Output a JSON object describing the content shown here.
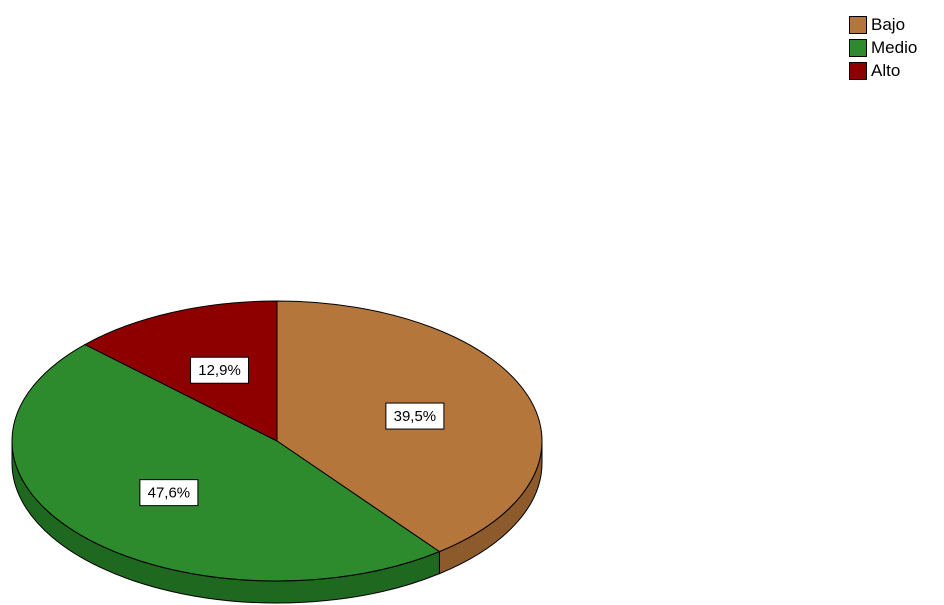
{
  "chart_data": {
    "type": "pie",
    "title": "",
    "categories": [
      "Bajo",
      "Medio",
      "Alto"
    ],
    "values": [
      39.5,
      47.6,
      12.9
    ],
    "data_labels": [
      "39,5%",
      "47,6%",
      "12,9%"
    ],
    "colors": [
      "#b5763c",
      "#2d8a2d",
      "#8e0000"
    ],
    "side_colors": [
      "#8c5a2b",
      "#1f681f",
      "#650000"
    ],
    "legend_placement": "top-right",
    "style": "3d"
  }
}
